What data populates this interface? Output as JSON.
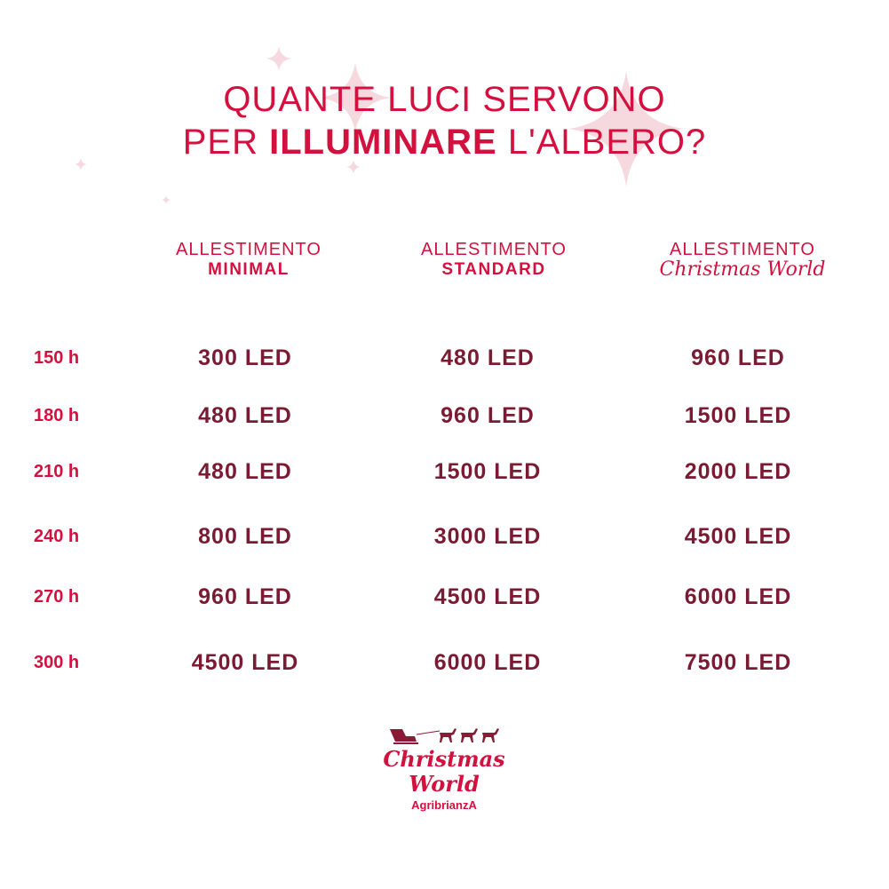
{
  "title": {
    "line1": "QUANTE LUCI SERVONO",
    "line2_prefix": "PER ",
    "line2_bold": "ILLUMINARE",
    "line2_suffix": " L'ALBERO?"
  },
  "columns": [
    {
      "line1": "ALLESTIMENTO",
      "line2": "MINIMAL"
    },
    {
      "line1": "ALLESTIMENTO",
      "line2": "STANDARD"
    },
    {
      "line1": "ALLESTIMENTO",
      "line2": "Christmas World"
    }
  ],
  "rows": [
    {
      "height": "150 h",
      "values": [
        "300 LED",
        "480 LED",
        "960 LED"
      ]
    },
    {
      "height": "180 h",
      "values": [
        "480 LED",
        "960 LED",
        "1500 LED"
      ]
    },
    {
      "height": "210 h",
      "values": [
        "480 LED",
        "1500 LED",
        "2000 LED"
      ]
    },
    {
      "height": "240 h",
      "values": [
        "800 LED",
        "3000 LED",
        "4500 LED"
      ]
    },
    {
      "height": "270 h",
      "values": [
        "960 LED",
        "4500 LED",
        "6000 LED"
      ]
    },
    {
      "height": "300 h",
      "values": [
        "4500 LED",
        "6000 LED",
        "7500 LED"
      ]
    }
  ],
  "logo": {
    "line1": "Christmas",
    "line2": "World",
    "sub": "AgribrianzA",
    "icon": "sleigh-reindeer-icon"
  },
  "colors": {
    "accent": "#d4103f",
    "values": "#7a1a33",
    "sparkle": "#f6d9df"
  }
}
